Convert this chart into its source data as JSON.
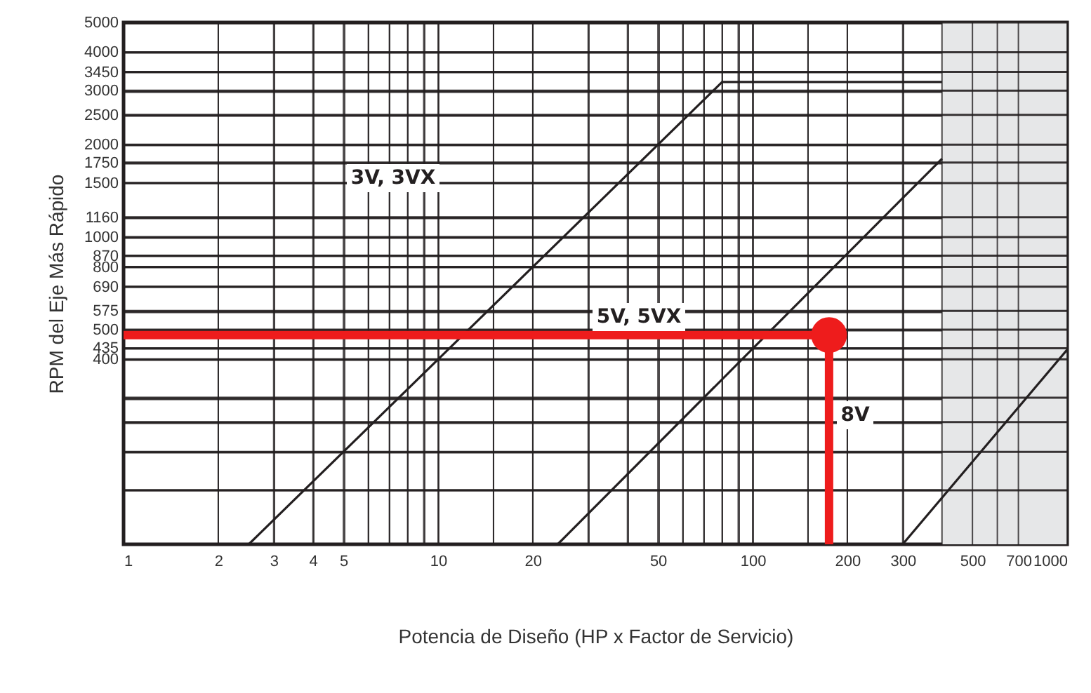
{
  "chart_data": {
    "type": "line",
    "xlabel": "Potencia de Diseño (HP x Factor de Servicio)",
    "ylabel": "RPM del Eje Más Rápido",
    "log": "xy",
    "grid": true,
    "xlim": [
      1,
      1000
    ],
    "ylim": [
      100,
      5000
    ],
    "xticks": [
      1,
      2,
      3,
      4,
      5,
      {
        "value": 6,
        "label": null
      },
      {
        "value": 7,
        "label": null
      },
      {
        "value": 8,
        "label": null
      },
      {
        "value": 9,
        "label": null
      },
      10,
      {
        "value": 15,
        "label": null
      },
      20,
      {
        "value": 30,
        "label": null
      },
      {
        "value": 40,
        "label": null
      },
      50,
      {
        "value": 60,
        "label": null
      },
      {
        "value": 70,
        "label": null
      },
      {
        "value": 80,
        "label": null
      },
      {
        "value": 90,
        "label": null
      },
      100,
      {
        "value": 150,
        "label": null
      },
      200,
      300,
      {
        "value": 400,
        "label": null
      },
      500,
      {
        "value": 600,
        "label": null
      },
      700,
      1000
    ],
    "yticks": [
      {
        "value": 150,
        "label": null
      },
      {
        "value": 200,
        "label": null
      },
      {
        "value": 250,
        "label": null
      },
      {
        "value": 300,
        "label": null
      },
      400,
      435,
      500,
      575,
      690,
      800,
      870,
      1000,
      1160,
      1500,
      1750,
      2000,
      2500,
      3000,
      3450,
      4000,
      5000
    ],
    "series": [
      {
        "color": "#231f20",
        "x": [
          2.5,
          80,
          400
        ],
        "values": [
          100,
          3200,
          3200
        ]
      },
      {
        "color": "#231f20",
        "x": [
          24,
          400
        ],
        "values": [
          100,
          1800
        ]
      },
      {
        "color": "#231f20",
        "x": [
          300,
          1000
        ],
        "values": [
          100,
          430
        ]
      },
      {
        "color": "#ee1c1c",
        "x": [
          1,
          175,
          175
        ],
        "values": [
          480,
          480,
          100
        ]
      },
      {
        "type": "scatter",
        "color": "#ee1c1c",
        "x": [
          175
        ],
        "values": [
          480
        ]
      }
    ],
    "bands": [
      {
        "axis": "x",
        "from": 400,
        "to": 1000,
        "color": "#e6e7e8"
      }
    ],
    "annotations": [
      "3V, 3VX",
      "5V, 5VX",
      "8V"
    ]
  }
}
